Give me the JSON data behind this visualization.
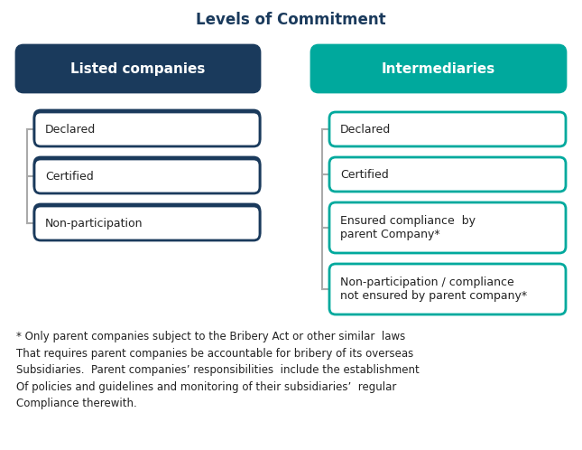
{
  "title": "Levels of Commitment",
  "title_color": "#1a3a5c",
  "title_fontsize": 12,
  "bg_color": "#ffffff",
  "left_header": "Listed companies",
  "left_header_bg": "#1a3a5c",
  "left_header_text_color": "#ffffff",
  "left_items": [
    "Declared",
    "Certified",
    "Non-participation"
  ],
  "left_box_border": "#1a3a5c",
  "right_header": "Intermediaries",
  "right_header_bg": "#00a99d",
  "right_header_text_color": "#ffffff",
  "right_items": [
    "Declared",
    "Certified",
    "Ensured compliance  by\nparent Company*",
    "Non-participation / compliance\nnot ensured by parent company*"
  ],
  "right_box_border": "#00a99d",
  "connector_color": "#aaaaaa",
  "footnote": "* Only parent companies subject to the Bribery Act or other similar  laws\nThat requires parent companies be accountable for bribery of its overseas\nSubsidiaries.  Parent companies’ responsibilities  include the establishment\nOf policies and guidelines and monitoring of their subsidiaries’  regular\nCompliance therewith.",
  "footnote_fontsize": 8.5,
  "item_fontsize": 9,
  "header_fontsize": 11
}
